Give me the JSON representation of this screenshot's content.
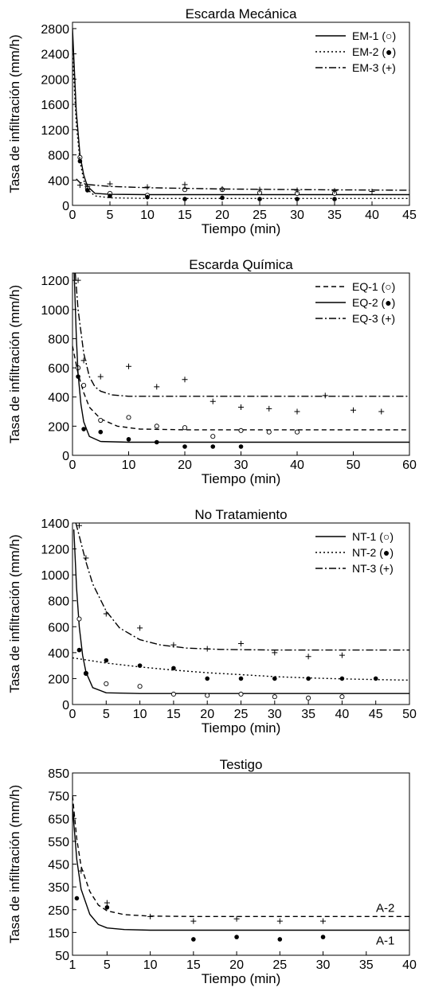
{
  "chart_data": [
    {
      "type": "scatter",
      "title": "Escarda Mecánica",
      "xlabel": "Tiempo (min)",
      "ylabel": "Tasa de infiltración (mm/h)",
      "xlim": [
        0,
        45
      ],
      "ylim": [
        0,
        2900
      ],
      "xticks": [
        0,
        5,
        10,
        15,
        20,
        25,
        30,
        35,
        40,
        45
      ],
      "yticks": [
        0,
        400,
        800,
        1200,
        1600,
        2000,
        2400,
        2800
      ],
      "legend_position": "top-right",
      "series": [
        {
          "name": "EM-1 (○)",
          "line_style": "solid",
          "marker": "open-circle",
          "points": [
            [
              1,
              760
            ],
            [
              2,
              270
            ],
            [
              5,
              190
            ],
            [
              10,
              160
            ],
            [
              15,
              250
            ],
            [
              20,
              250
            ],
            [
              25,
              200
            ],
            [
              30,
              190
            ],
            [
              35,
              190
            ]
          ],
          "fit": [
            [
              0,
              2800
            ],
            [
              0.5,
              1500
            ],
            [
              1,
              800
            ],
            [
              1.5,
              480
            ],
            [
              2,
              300
            ],
            [
              3,
              190
            ],
            [
              5,
              175
            ],
            [
              10,
              170
            ],
            [
              20,
              170
            ],
            [
              45,
              170
            ]
          ]
        },
        {
          "name": "EM-2 (●)",
          "line_style": "dotted",
          "marker": "filled-circle",
          "points": [
            [
              1,
              700
            ],
            [
              2,
              240
            ],
            [
              5,
              150
            ],
            [
              10,
              130
            ],
            [
              15,
              100
            ],
            [
              20,
              120
            ],
            [
              25,
              100
            ],
            [
              30,
              100
            ],
            [
              35,
              100
            ]
          ],
          "fit": [
            [
              0,
              2400
            ],
            [
              0.5,
              1300
            ],
            [
              1,
              700
            ],
            [
              1.5,
              400
            ],
            [
              2,
              250
            ],
            [
              3,
              150
            ],
            [
              5,
              120
            ],
            [
              10,
              110
            ],
            [
              20,
              110
            ],
            [
              45,
              110
            ]
          ]
        },
        {
          "name": "EM-3 (+)",
          "line_style": "dash-dot",
          "marker": "plus",
          "points": [
            [
              1,
              320
            ],
            [
              2,
              300
            ],
            [
              5,
              340
            ],
            [
              10,
              290
            ],
            [
              15,
              330
            ],
            [
              20,
              260
            ],
            [
              25,
              250
            ],
            [
              30,
              240
            ],
            [
              35,
              230
            ],
            [
              40,
              220
            ]
          ],
          "fit": [
            [
              0.5,
              420
            ],
            [
              1,
              360
            ],
            [
              2,
              330
            ],
            [
              5,
              300
            ],
            [
              10,
              280
            ],
            [
              20,
              260
            ],
            [
              30,
              250
            ],
            [
              45,
              240
            ]
          ]
        }
      ]
    },
    {
      "type": "scatter",
      "title": "Escarda Química",
      "xlabel": "Tiempo (min)",
      "ylabel": "Tasa de infiltración (mm/h)",
      "xlim": [
        0,
        60
      ],
      "ylim": [
        0,
        1250
      ],
      "xticks": [
        0,
        10,
        20,
        30,
        40,
        50,
        60
      ],
      "yticks": [
        0,
        200,
        400,
        600,
        800,
        1000,
        1200
      ],
      "legend_position": "top-right",
      "series": [
        {
          "name": "EQ-1 (○)",
          "line_style": "dashed",
          "marker": "open-circle",
          "points": [
            [
              1,
              600
            ],
            [
              2,
              480
            ],
            [
              5,
              240
            ],
            [
              10,
              260
            ],
            [
              15,
              200
            ],
            [
              20,
              190
            ],
            [
              25,
              130
            ],
            [
              30,
              170
            ],
            [
              35,
              160
            ],
            [
              40,
              160
            ]
          ],
          "fit": [
            [
              0,
              750
            ],
            [
              1,
              560
            ],
            [
              2,
              430
            ],
            [
              3,
              330
            ],
            [
              5,
              250
            ],
            [
              8,
              200
            ],
            [
              12,
              180
            ],
            [
              20,
              175
            ],
            [
              60,
              175
            ]
          ]
        },
        {
          "name": "EQ-2 (●)",
          "line_style": "solid",
          "marker": "filled-circle",
          "points": [
            [
              1,
              540
            ],
            [
              2,
              180
            ],
            [
              5,
              160
            ],
            [
              10,
              110
            ],
            [
              15,
              90
            ],
            [
              20,
              60
            ],
            [
              25,
              60
            ],
            [
              30,
              60
            ]
          ],
          "fit": [
            [
              0.3,
              1250
            ],
            [
              0.7,
              800
            ],
            [
              1,
              560
            ],
            [
              1.5,
              350
            ],
            [
              2,
              230
            ],
            [
              3,
              130
            ],
            [
              5,
              95
            ],
            [
              10,
              90
            ],
            [
              60,
              90
            ]
          ]
        },
        {
          "name": "EQ-3 (+)",
          "line_style": "dash-dot",
          "marker": "plus",
          "points": [
            [
              1,
              1200
            ],
            [
              2,
              650
            ],
            [
              5,
              540
            ],
            [
              10,
              610
            ],
            [
              15,
              470
            ],
            [
              20,
              520
            ],
            [
              25,
              370
            ],
            [
              30,
              330
            ],
            [
              35,
              320
            ],
            [
              40,
              300
            ],
            [
              45,
              410
            ],
            [
              50,
              310
            ],
            [
              55,
              300
            ]
          ],
          "fit": [
            [
              0.5,
              1250
            ],
            [
              1,
              1000
            ],
            [
              2,
              700
            ],
            [
              3,
              540
            ],
            [
              4,
              470
            ],
            [
              5,
              440
            ],
            [
              7,
              415
            ],
            [
              10,
              405
            ],
            [
              60,
              405
            ]
          ]
        }
      ]
    },
    {
      "type": "scatter",
      "title": "No Tratamiento",
      "xlabel": "Tiempo (min)",
      "ylabel": "Tasa de infiltración (mm/h)",
      "xlim": [
        0,
        50
      ],
      "ylim": [
        0,
        1400
      ],
      "xticks": [
        0,
        5,
        10,
        15,
        20,
        25,
        30,
        35,
        40,
        45,
        50
      ],
      "yticks": [
        0,
        200,
        400,
        600,
        800,
        1000,
        1200,
        1400
      ],
      "legend_position": "top-right",
      "series": [
        {
          "name": "NT-1 (○)",
          "line_style": "solid",
          "marker": "open-circle",
          "points": [
            [
              1,
              660
            ],
            [
              2,
              240
            ],
            [
              5,
              160
            ],
            [
              10,
              140
            ],
            [
              15,
              80
            ],
            [
              20,
              70
            ],
            [
              25,
              80
            ],
            [
              30,
              60
            ],
            [
              35,
              50
            ],
            [
              40,
              60
            ]
          ],
          "fit": [
            [
              0.2,
              1350
            ],
            [
              0.6,
              900
            ],
            [
              1,
              600
            ],
            [
              1.5,
              380
            ],
            [
              2,
              250
            ],
            [
              3,
              130
            ],
            [
              5,
              90
            ],
            [
              10,
              85
            ],
            [
              50,
              85
            ]
          ]
        },
        {
          "name": "NT-2 (●)",
          "line_style": "dotted",
          "marker": "filled-circle",
          "points": [
            [
              1,
              420
            ],
            [
              2,
              240
            ],
            [
              5,
              340
            ],
            [
              10,
              300
            ],
            [
              15,
              280
            ],
            [
              20,
              200
            ],
            [
              25,
              200
            ],
            [
              30,
              200
            ],
            [
              35,
              200
            ],
            [
              40,
              200
            ],
            [
              45,
              200
            ]
          ],
          "fit": [
            [
              0,
              360
            ],
            [
              5,
              320
            ],
            [
              10,
              290
            ],
            [
              15,
              265
            ],
            [
              20,
              245
            ],
            [
              25,
              230
            ],
            [
              30,
              215
            ],
            [
              35,
              205
            ],
            [
              40,
              198
            ],
            [
              45,
              192
            ],
            [
              50,
              188
            ]
          ]
        },
        {
          "name": "NT-3 (+)",
          "line_style": "dash-dot",
          "marker": "plus",
          "points": [
            [
              1,
              1380
            ],
            [
              2,
              1130
            ],
            [
              5,
              700
            ],
            [
              10,
              590
            ],
            [
              15,
              460
            ],
            [
              20,
              430
            ],
            [
              25,
              470
            ],
            [
              30,
              400
            ],
            [
              35,
              370
            ],
            [
              40,
              380
            ]
          ],
          "fit": [
            [
              0.5,
              1400
            ],
            [
              1,
              1300
            ],
            [
              2,
              1100
            ],
            [
              3,
              930
            ],
            [
              5,
              720
            ],
            [
              7,
              590
            ],
            [
              10,
              500
            ],
            [
              13,
              460
            ],
            [
              17,
              435
            ],
            [
              22,
              425
            ],
            [
              30,
              420
            ],
            [
              50,
              420
            ]
          ]
        }
      ]
    },
    {
      "type": "scatter",
      "title": "Testigo",
      "xlabel": "Tiempo (min)",
      "ylabel": "Tasa de infiltración (mm/h)",
      "xlim": [
        1,
        40
      ],
      "ylim": [
        50,
        850
      ],
      "xticks": [
        1,
        5,
        10,
        15,
        20,
        25,
        30,
        35,
        40
      ],
      "yticks": [
        50,
        150,
        250,
        350,
        450,
        550,
        650,
        750,
        850
      ],
      "legend_position": "none",
      "series": [
        {
          "name": "A-1",
          "line_style": "solid",
          "marker": "filled-circle",
          "points": [
            [
              1,
              660
            ],
            [
              1.5,
              300
            ],
            [
              5,
              260
            ],
            [
              15,
              120
            ],
            [
              20,
              130
            ],
            [
              25,
              120
            ],
            [
              30,
              130
            ]
          ],
          "fit": [
            [
              1,
              700
            ],
            [
              1.5,
              470
            ],
            [
              2,
              340
            ],
            [
              3,
              230
            ],
            [
              4,
              185
            ],
            [
              5,
              170
            ],
            [
              7,
              163
            ],
            [
              10,
              160
            ],
            [
              40,
              160
            ]
          ]
        },
        {
          "name": "A-2",
          "line_style": "dashed",
          "marker": "plus",
          "points": [
            [
              2,
              420
            ],
            [
              5,
              280
            ],
            [
              10,
              220
            ],
            [
              15,
              200
            ],
            [
              20,
              210
            ],
            [
              25,
              200
            ],
            [
              30,
              200
            ]
          ],
          "fit": [
            [
              1,
              750
            ],
            [
              1.5,
              560
            ],
            [
              2,
              440
            ],
            [
              3,
              330
            ],
            [
              4,
              270
            ],
            [
              5,
              245
            ],
            [
              7,
              228
            ],
            [
              10,
              222
            ],
            [
              15,
              220
            ],
            [
              40,
              220
            ]
          ]
        }
      ]
    }
  ]
}
